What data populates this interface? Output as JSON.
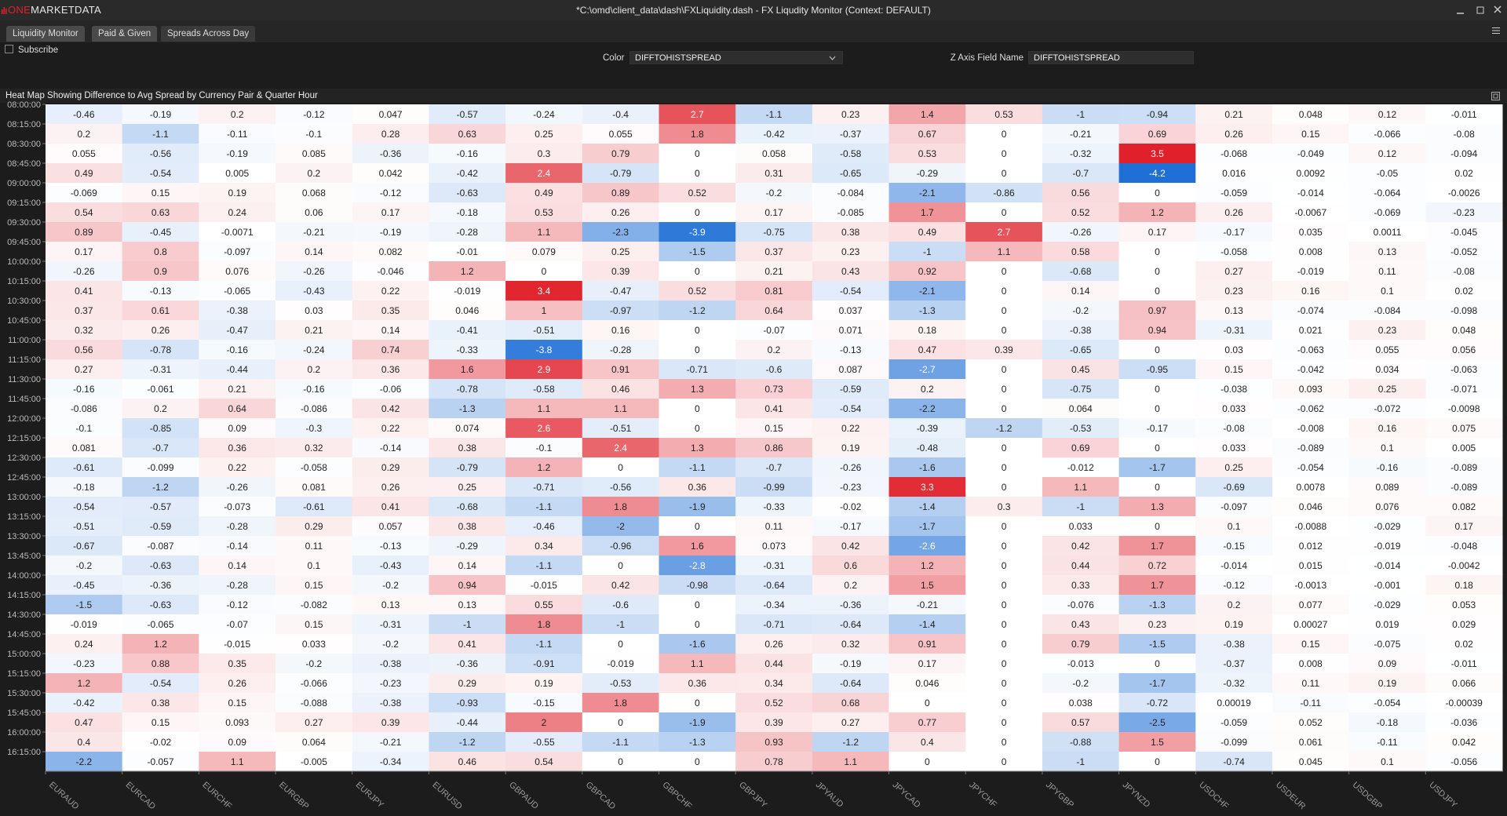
{
  "window": {
    "logo_accent": "ONE",
    "logo_rest": "MARKETDATA",
    "title": "*C:\\omd\\client_data\\dash\\FXLiquidity.dash - FX Liqudity Monitor (Context: DEFAULT)"
  },
  "tabs": [
    "Liquidity Monitor",
    "Paid & Given",
    "Spreads Across Day"
  ],
  "subscribe": "Subscribe",
  "controls": {
    "color_label": "Color",
    "color_value": "DIFFTOHISTSPREAD",
    "z_label": "Z Axis Field Name",
    "z_value": "DIFFTOHISTSPREAD"
  },
  "chart_data": {
    "type": "heatmap",
    "title": "Heat Map Showing Difference to Avg Spread by Currency Pair & Quarter Hour",
    "colors": {
      "low": "#1f6fd6",
      "mid": "#ffffff",
      "high": "#e0202a"
    },
    "x_categories": [
      "EURAUD",
      "EURCAD",
      "EURCHF",
      "EURGBP",
      "EURJPY",
      "EURUSD",
      "GBPAUD",
      "GBPCAD",
      "GBPCHF",
      "GBPJPY",
      "JPYAUD",
      "JPYCAD",
      "JPYCHF",
      "JPYGBP",
      "JPYNZD",
      "USDCHF",
      "USDEUR",
      "USDGBP",
      "USDJPY"
    ],
    "y_categories": [
      "08:00:00",
      "08:15:00",
      "08:30:00",
      "08:45:00",
      "09:00:00",
      "09:15:00",
      "09:30:00",
      "09:45:00",
      "10:00:00",
      "10:15:00",
      "10:30:00",
      "10:45:00",
      "11:00:00",
      "11:15:00",
      "11:30:00",
      "11:45:00",
      "12:00:00",
      "12:15:00",
      "12:30:00",
      "12:45:00",
      "13:00:00",
      "13:15:00",
      "13:30:00",
      "13:45:00",
      "14:00:00",
      "14:15:00",
      "14:30:00",
      "14:45:00",
      "15:00:00",
      "15:15:00",
      "15:30:00",
      "15:45:00",
      "16:00:00",
      "16:15:00"
    ],
    "values": [
      [
        -0.46,
        -0.19,
        0.2,
        -0.12,
        0.047,
        -0.57,
        -0.24,
        -0.4,
        2.7,
        -1.1,
        0.23,
        1.4,
        0.53,
        -1,
        -0.94,
        0.21,
        0.048,
        0.12,
        -0.011
      ],
      [
        0.2,
        -1.1,
        -0.11,
        -0.1,
        0.28,
        0.63,
        0.25,
        0.055,
        1.8,
        -0.42,
        -0.37,
        0.67,
        0,
        -0.21,
        0.69,
        0.26,
        0.15,
        -0.066,
        -0.08
      ],
      [
        0.055,
        -0.56,
        -0.19,
        0.085,
        -0.36,
        -0.16,
        0.3,
        0.79,
        0,
        0.058,
        -0.58,
        0.53,
        0,
        -0.32,
        3.5,
        -0.068,
        -0.049,
        0.12,
        -0.094
      ],
      [
        0.49,
        -0.54,
        0.005,
        0.2,
        0.042,
        -0.42,
        2.4,
        -0.79,
        0,
        0.31,
        -0.65,
        -0.29,
        0,
        -0.7,
        -4.2,
        0.016,
        0.0092,
        -0.05,
        0.02
      ],
      [
        -0.069,
        0.15,
        0.19,
        0.068,
        -0.12,
        -0.63,
        0.49,
        0.89,
        0.52,
        -0.2,
        -0.084,
        -2.1,
        -0.86,
        0.56,
        0,
        -0.059,
        -0.014,
        -0.064,
        -0.0026
      ],
      [
        0.54,
        0.63,
        0.24,
        0.06,
        0.17,
        -0.18,
        0.53,
        0.26,
        0,
        0.17,
        -0.085,
        1.7,
        0,
        0.52,
        1.2,
        0.26,
        -0.0067,
        -0.069,
        -0.23
      ],
      [
        0.89,
        -0.45,
        -0.0071,
        -0.21,
        -0.19,
        -0.28,
        1.1,
        -2.3,
        -3.9,
        -0.75,
        0.38,
        0.49,
        2.7,
        -0.26,
        0.17,
        -0.17,
        0.035,
        0.0011,
        -0.045
      ],
      [
        0.17,
        0.8,
        -0.097,
        0.14,
        0.082,
        -0.01,
        0.079,
        0.25,
        -1.5,
        0.37,
        0.23,
        -1,
        1.1,
        0.58,
        0,
        -0.058,
        0.008,
        0.13,
        -0.052
      ],
      [
        -0.26,
        0.9,
        0.076,
        -0.26,
        -0.046,
        1.2,
        0,
        0.39,
        0,
        0.21,
        0.43,
        0.92,
        0,
        -0.68,
        0,
        0.27,
        -0.019,
        0.11,
        -0.08
      ],
      [
        0.41,
        -0.13,
        -0.065,
        -0.43,
        0.22,
        -0.019,
        3.4,
        -0.47,
        0.52,
        0.81,
        -0.54,
        -2.1,
        0,
        0.14,
        0,
        0.23,
        0.16,
        0.1,
        0.02
      ],
      [
        0.37,
        0.61,
        -0.38,
        0.03,
        0.35,
        0.046,
        1,
        -0.97,
        -1.2,
        0.64,
        0.037,
        -1.3,
        0,
        -0.2,
        0.97,
        0.13,
        -0.074,
        -0.084,
        -0.098
      ],
      [
        0.32,
        0.26,
        -0.47,
        0.21,
        0.14,
        -0.41,
        -0.51,
        0.16,
        0,
        -0.07,
        0.071,
        0.18,
        0,
        -0.38,
        0.94,
        -0.31,
        0.021,
        0.23,
        0.048
      ],
      [
        0.56,
        -0.78,
        -0.16,
        -0.24,
        0.74,
        -0.33,
        -3.8,
        -0.28,
        0,
        0.2,
        -0.13,
        0.47,
        0.39,
        -0.65,
        0,
        0.03,
        -0.063,
        0.055,
        0.056
      ],
      [
        0.27,
        -0.31,
        -0.44,
        0.2,
        0.36,
        1.6,
        2.9,
        0.91,
        -0.71,
        -0.6,
        0.087,
        -2.7,
        0,
        0.45,
        -0.95,
        0.15,
        -0.042,
        0.034,
        -0.063
      ],
      [
        -0.16,
        -0.061,
        0.21,
        -0.16,
        -0.06,
        -0.78,
        -0.58,
        0.46,
        1.3,
        0.73,
        -0.59,
        0.2,
        0,
        -0.75,
        0,
        -0.038,
        0.093,
        0.25,
        -0.071
      ],
      [
        -0.086,
        0.2,
        0.64,
        -0.086,
        0.42,
        -1.3,
        1.1,
        1.1,
        0,
        0.41,
        -0.54,
        -2.2,
        0,
        0.064,
        0,
        0.033,
        -0.062,
        -0.072,
        -0.0098
      ],
      [
        -0.1,
        -0.85,
        0.09,
        -0.3,
        0.22,
        0.074,
        2.6,
        -0.51,
        0,
        0.15,
        0.22,
        -0.39,
        -1.2,
        -0.53,
        -0.17,
        -0.08,
        -0.008,
        0.16,
        0.075
      ],
      [
        0.081,
        -0.7,
        0.36,
        0.32,
        -0.14,
        0.38,
        -0.1,
        2.4,
        1.3,
        0.86,
        0.19,
        -0.48,
        0,
        0.69,
        0,
        0.033,
        -0.089,
        0.1,
        0.005
      ],
      [
        -0.61,
        -0.099,
        0.22,
        -0.058,
        0.29,
        -0.79,
        1.2,
        0,
        -1.1,
        -0.7,
        -0.26,
        -1.6,
        0,
        -0.012,
        -1.7,
        0.25,
        -0.054,
        -0.16,
        -0.089
      ],
      [
        -0.18,
        -1.2,
        -0.26,
        0.081,
        0.26,
        0.25,
        -0.71,
        -0.56,
        0.36,
        -0.99,
        -0.23,
        3.3,
        0,
        1.1,
        0,
        -0.69,
        0.0078,
        0.089,
        -0.089
      ],
      [
        -0.54,
        -0.57,
        -0.073,
        -0.61,
        0.41,
        -0.68,
        -1.1,
        1.8,
        -1.9,
        -0.33,
        -0.02,
        -1.4,
        0.3,
        -1,
        1.3,
        -0.097,
        0.046,
        0.076,
        0.082
      ],
      [
        -0.51,
        -0.59,
        -0.28,
        0.29,
        0.057,
        0.38,
        -0.46,
        -2,
        0,
        0.11,
        -0.17,
        -1.7,
        0,
        0.033,
        0,
        0.1,
        -0.0088,
        -0.029,
        0.17
      ],
      [
        -0.67,
        -0.087,
        -0.14,
        0.11,
        -0.13,
        -0.29,
        0.34,
        -0.96,
        1.6,
        0.073,
        0.42,
        -2.6,
        0,
        0.42,
        1.7,
        -0.15,
        0.012,
        -0.019,
        -0.048
      ],
      [
        -0.2,
        -0.63,
        0.14,
        0.1,
        -0.43,
        0.14,
        -1.1,
        0,
        -2.8,
        -0.31,
        0.6,
        1.2,
        0,
        0.44,
        0.72,
        -0.014,
        0.015,
        -0.014,
        -0.0042
      ],
      [
        -0.45,
        -0.36,
        -0.28,
        0.15,
        -0.2,
        0.94,
        -0.015,
        0.42,
        -0.98,
        -0.64,
        0.2,
        1.5,
        0,
        0.33,
        1.7,
        -0.12,
        -0.0013,
        -0.001,
        0.18
      ],
      [
        -1.5,
        -0.63,
        -0.12,
        -0.082,
        0.13,
        0.13,
        0.55,
        -0.6,
        0,
        -0.34,
        -0.36,
        -0.21,
        0,
        -0.076,
        -1.3,
        0.2,
        0.077,
        -0.029,
        0.053
      ],
      [
        -0.019,
        -0.065,
        -0.07,
        0.15,
        -0.31,
        -1,
        1.8,
        -1,
        0,
        -0.71,
        -0.64,
        -1.4,
        0,
        0.43,
        0.23,
        0.19,
        0.00027,
        0.019,
        0.029
      ],
      [
        0.24,
        1.2,
        -0.015,
        0.033,
        -0.2,
        0.41,
        -1.1,
        0,
        -1.6,
        0.26,
        0.32,
        0.91,
        0,
        0.79,
        -1.5,
        -0.38,
        0.15,
        -0.075,
        0.02
      ],
      [
        -0.23,
        0.88,
        0.35,
        -0.2,
        -0.38,
        -0.36,
        -0.91,
        -0.019,
        1.1,
        0.44,
        -0.19,
        0.17,
        0,
        -0.013,
        0,
        -0.37,
        0.008,
        0.09,
        -0.011
      ],
      [
        1.2,
        -0.54,
        0.26,
        -0.066,
        -0.23,
        0.29,
        0.19,
        -0.53,
        0.36,
        0.34,
        -0.64,
        0.046,
        0,
        -0.2,
        -1.7,
        -0.32,
        0.11,
        0.19,
        0.066
      ],
      [
        -0.42,
        0.38,
        0.15,
        -0.088,
        -0.38,
        -0.93,
        -0.15,
        1.8,
        0,
        0.52,
        0.68,
        0,
        0,
        0.038,
        -0.72,
        0.00019,
        -0.11,
        -0.054,
        -0.00039
      ],
      [
        0.47,
        0.15,
        0.093,
        0.27,
        0.39,
        -0.44,
        2,
        0,
        -1.9,
        0.39,
        0.27,
        0.77,
        0,
        0.57,
        -2.5,
        -0.059,
        0.052,
        -0.18,
        -0.036
      ],
      [
        0.4,
        -0.02,
        0.09,
        0.064,
        -0.21,
        -1.2,
        -0.55,
        -1.1,
        -1.3,
        0.93,
        -1.2,
        0.4,
        0,
        -0.88,
        1.5,
        -0.099,
        0.061,
        -0.11,
        0.042
      ],
      [
        -2.2,
        -0.057,
        1.1,
        -0.005,
        -0.34,
        0.46,
        0.54,
        0,
        0,
        0.78,
        1.1,
        0,
        0,
        -1,
        0,
        -0.74,
        0.045,
        0.1,
        -0.056
      ]
    ]
  }
}
